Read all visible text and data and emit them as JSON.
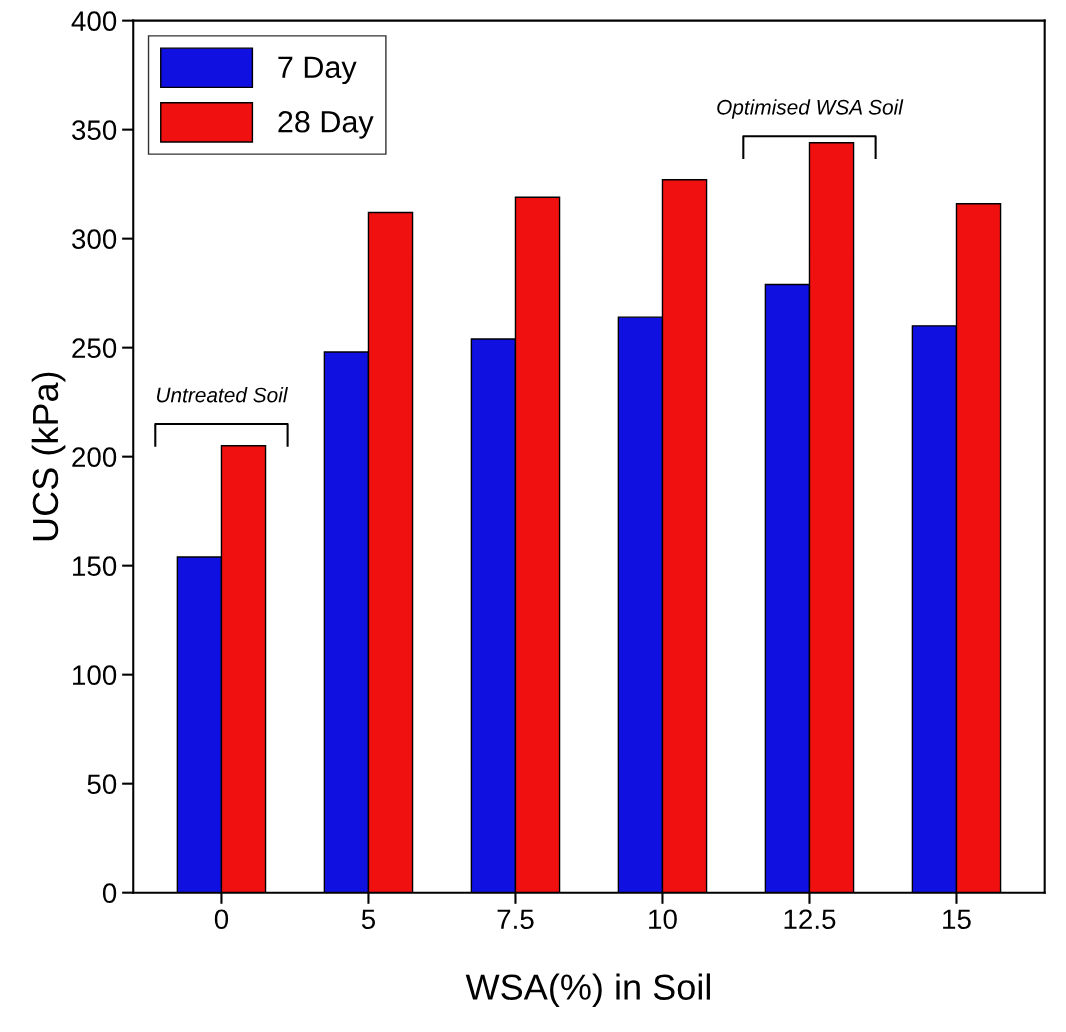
{
  "chart_data": {
    "type": "bar",
    "xlabel": "WSA(%) in Soil",
    "ylabel": "UCS (kPa)",
    "categories": [
      "0",
      "5",
      "7.5",
      "10",
      "12.5",
      "15"
    ],
    "series": [
      {
        "name": "7 Day",
        "color": "#1010e0",
        "values": [
          154,
          248,
          254,
          264,
          279,
          260
        ]
      },
      {
        "name": "28 Day",
        "color": "#f01010",
        "values": [
          205,
          312,
          319,
          327,
          344,
          316
        ]
      }
    ],
    "ylim": [
      0,
      400
    ],
    "yticks": [
      0,
      50,
      100,
      150,
      200,
      250,
      300,
      350,
      400
    ],
    "grid": false,
    "legend": "top left",
    "annotations": [
      "Untreated Soil",
      "Optimised WSA Soil"
    ]
  }
}
